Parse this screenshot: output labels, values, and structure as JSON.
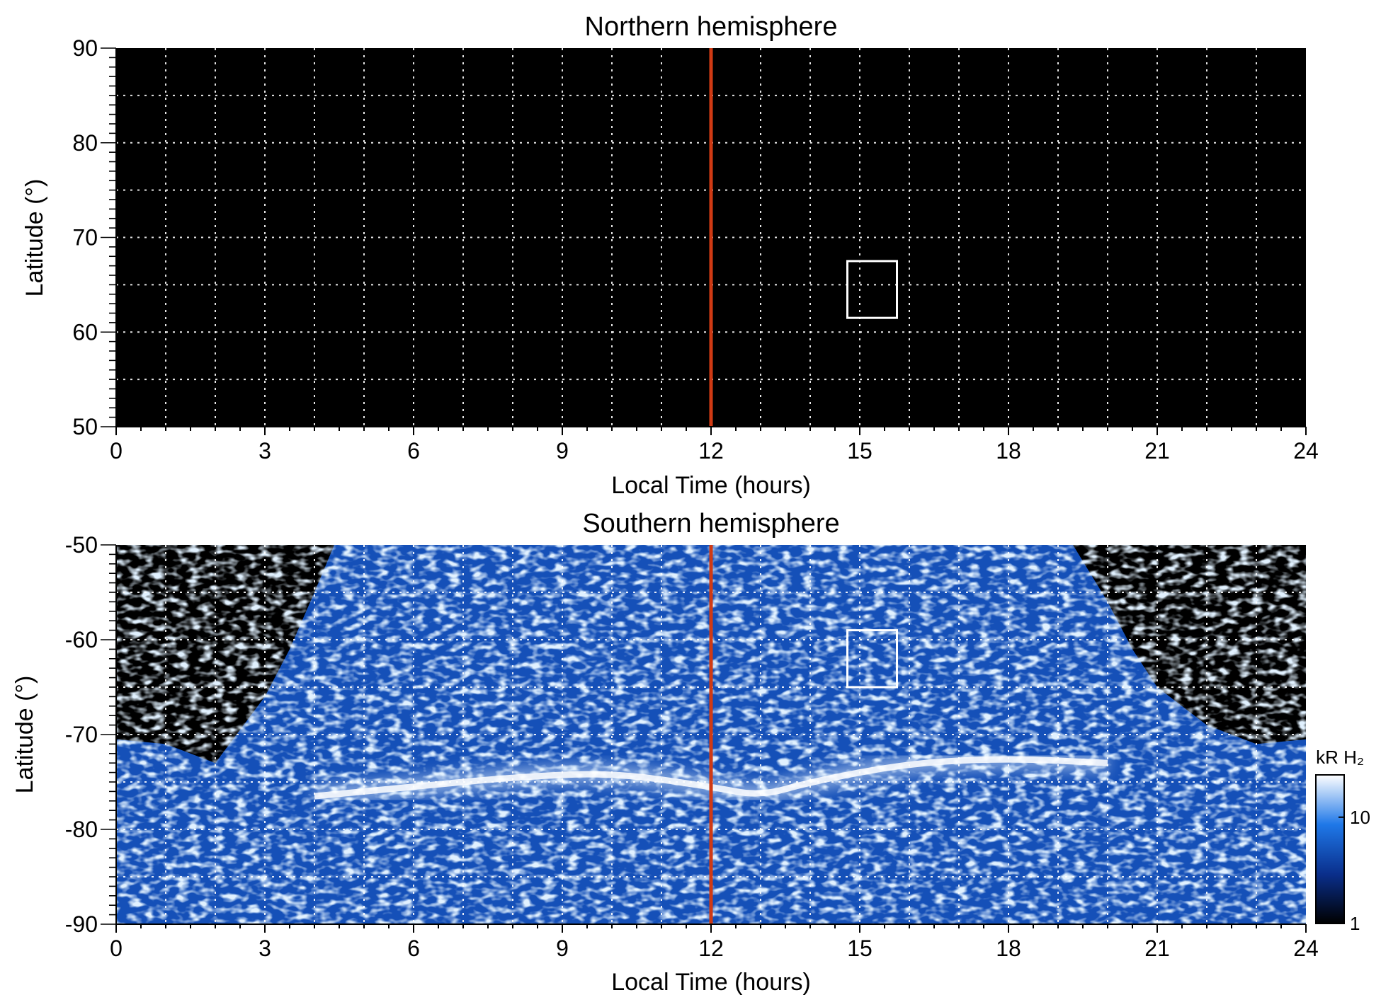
{
  "chart_data": [
    {
      "type": "heatmap",
      "title": "Northern hemisphere",
      "xlabel": "Local Time (hours)",
      "ylabel": "Latitude (°)",
      "xlim": [
        0,
        24
      ],
      "ylim": [
        50,
        90
      ],
      "x_major_ticks": [
        0,
        3,
        6,
        9,
        12,
        15,
        18,
        21,
        24
      ],
      "x_tick_labels": [
        "0",
        "3",
        "6",
        "9",
        "12",
        "15",
        "18",
        "21",
        "24"
      ],
      "y_major_ticks": [
        50,
        60,
        70,
        80,
        90
      ],
      "y_tick_labels": [
        "50",
        "60",
        "70",
        "80",
        "90"
      ],
      "grid": true,
      "grid_x_step": 1,
      "grid_y_step": 5,
      "background_color": "#000000",
      "noon_line": {
        "x": 12,
        "color": "#d03a14"
      },
      "box": {
        "x": [
          14.75,
          15.75
        ],
        "y": [
          61.5,
          67.5
        ],
        "color": "#ffffff"
      },
      "emission": "none"
    },
    {
      "type": "heatmap",
      "title": "Southern hemisphere",
      "xlabel": "Local Time (hours)",
      "ylabel": "Latitude (°)",
      "xlim": [
        0,
        24
      ],
      "ylim": [
        -90,
        -50
      ],
      "x_major_ticks": [
        0,
        3,
        6,
        9,
        12,
        15,
        18,
        21,
        24
      ],
      "x_tick_labels": [
        "0",
        "3",
        "6",
        "9",
        "12",
        "15",
        "18",
        "21",
        "24"
      ],
      "y_major_ticks": [
        -90,
        -80,
        -70,
        -60,
        -50
      ],
      "y_tick_labels": [
        "-90",
        "-80",
        "-70",
        "-60",
        "-50"
      ],
      "grid": true,
      "grid_x_step": 1,
      "grid_y_step": 5,
      "background_color": "#000000",
      "noon_line": {
        "x": 12,
        "color": "#d03a14"
      },
      "box": {
        "x": [
          14.75,
          15.75
        ],
        "y": [
          -65,
          -59
        ],
        "color": "#ffffff"
      },
      "coverage_boundary": {
        "local_time": [
          0,
          1,
          2,
          3,
          3.5,
          4,
          4.4,
          19.3,
          20,
          20.5,
          21,
          22,
          23,
          24
        ],
        "latitude": [
          -70.5,
          -71,
          -73,
          -66,
          -61,
          -55,
          -50,
          -50,
          -56,
          -61,
          -65,
          -69,
          -71,
          -70.5
        ]
      },
      "auroral_oval": {
        "local_time": [
          4,
          6,
          8,
          10,
          12,
          13,
          14,
          16,
          18,
          20
        ],
        "latitude": [
          -76.5,
          -75.5,
          -74.5,
          -74,
          -75.5,
          -76.5,
          -75,
          -73,
          -72.5,
          -73
        ]
      },
      "colorbar": {
        "label": "kR H₂",
        "scale": "log",
        "range": [
          1,
          25
        ],
        "tick_values": [
          1,
          10
        ],
        "tick_labels": [
          "1",
          "10"
        ],
        "colors": [
          "#000000",
          "#0a2f8c",
          "#1f78e8",
          "#ffffff"
        ]
      }
    }
  ]
}
